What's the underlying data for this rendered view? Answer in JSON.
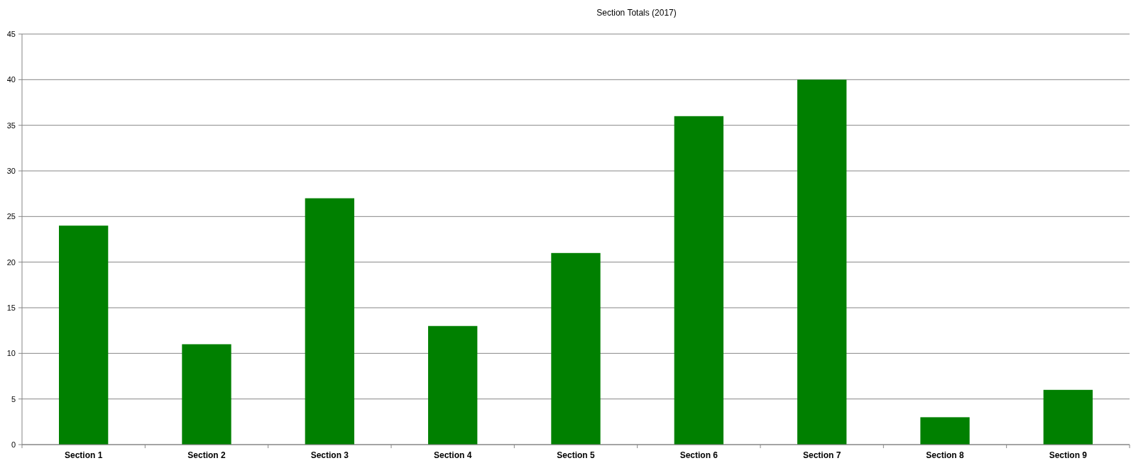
{
  "chart_data": {
    "type": "bar",
    "title": "Section Totals (2017)",
    "categories": [
      "Section 1",
      "Section 2",
      "Section 3",
      "Section 4",
      "Section 5",
      "Section 6",
      "Section 7",
      "Section 8",
      "Section 9"
    ],
    "values": [
      24,
      11,
      27,
      13,
      21,
      36,
      40,
      3,
      6
    ],
    "color": "#008000",
    "ylim": [
      0,
      45
    ],
    "yticks": [
      0,
      5,
      10,
      15,
      20,
      25,
      30,
      35,
      40,
      45
    ],
    "grid": "y"
  }
}
